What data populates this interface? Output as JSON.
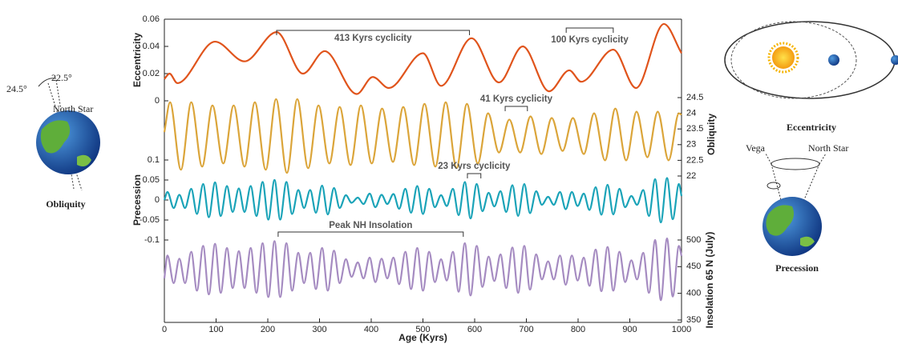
{
  "chart_data": [
    {
      "type": "line",
      "ylabel": "Eccentricity",
      "axis": "left",
      "color": "#e0541c",
      "ylim": [
        0,
        0.06
      ],
      "yticks": [
        0,
        0.02,
        0.04,
        0.06
      ],
      "x": [
        0,
        10,
        25,
        98,
        155,
        217,
        268,
        310,
        372,
        403,
        434,
        500,
        535,
        594,
        647,
        693,
        744,
        783,
        806,
        868,
        912,
        966,
        1000
      ],
      "values": [
        0.016,
        0.02,
        0.013,
        0.0435,
        0.029,
        0.0505,
        0.02,
        0.0365,
        0.005,
        0.0175,
        0.0094,
        0.035,
        0.011,
        0.046,
        0.0135,
        0.04,
        0.007,
        0.0224,
        0.014,
        0.0376,
        0.0094,
        0.0565,
        0.035
      ],
      "annotations": [
        {
          "label": "413 Kyrs cyclicity",
          "x": [
            217,
            590
          ]
        },
        {
          "label": "100 Kyrs cyclicity",
          "x": [
            777,
            868
          ]
        }
      ]
    },
    {
      "type": "line",
      "ylabel": "Obliquity",
      "axis": "y2",
      "color": "#dba53a",
      "ylim": [
        22,
        24.5
      ],
      "yticks": [
        22,
        22.5,
        23,
        23.5,
        24,
        24.5
      ],
      "x": [
        0,
        11,
        32,
        52,
        73,
        93,
        114,
        134,
        155,
        175,
        196,
        216,
        237,
        257,
        278,
        298,
        319,
        339,
        360,
        380,
        401,
        421,
        442,
        462,
        483,
        503,
        524,
        544,
        565,
        585,
        606,
        626,
        647,
        667,
        688,
        708,
        729,
        749,
        770,
        790,
        811,
        831,
        852,
        872,
        893,
        913,
        934,
        954,
        975,
        995,
        1000
      ],
      "values": [
        23.4,
        24.35,
        22.2,
        24.35,
        22.3,
        24.25,
        22.4,
        24.25,
        22.3,
        24.35,
        22.2,
        24.45,
        22.1,
        24.45,
        22.25,
        24.25,
        22.4,
        24.2,
        22.35,
        24.25,
        22.4,
        24.15,
        22.45,
        24.2,
        22.35,
        24.3,
        22.3,
        24.35,
        22.25,
        24.3,
        22.4,
        24.0,
        22.75,
        23.8,
        22.75,
        23.9,
        22.7,
        23.85,
        22.8,
        23.85,
        22.7,
        24.0,
        22.5,
        24.15,
        22.5,
        24.05,
        22.6,
        24.05,
        22.5,
        24.0,
        23.95
      ],
      "annotations": [
        {
          "label": "41 Kyrs cyclicity",
          "x": [
            659,
            702
          ]
        }
      ]
    },
    {
      "type": "line",
      "ylabel": "Precession",
      "axis": "left",
      "color": "#1aa3b8",
      "ylim": [
        -0.1,
        0.1
      ],
      "yticks": [
        -0.1,
        -0.05,
        0,
        0.05,
        0.1
      ],
      "x": [
        0,
        6,
        18,
        29,
        40,
        52,
        63,
        75,
        86,
        98,
        109,
        121,
        132,
        144,
        155,
        167,
        178,
        190,
        201,
        213,
        224,
        236,
        247,
        259,
        270,
        282,
        293,
        305,
        316,
        328,
        339,
        351,
        362,
        374,
        385,
        397,
        408,
        420,
        431,
        443,
        454,
        466,
        477,
        489,
        500,
        512,
        523,
        535,
        546,
        558,
        569,
        581,
        592,
        604,
        615,
        627,
        638,
        650,
        661,
        673,
        684,
        696,
        707,
        719,
        730,
        742,
        753,
        765,
        776,
        788,
        799,
        811,
        822,
        834,
        845,
        857,
        868,
        880,
        891,
        903,
        914,
        926,
        937,
        949,
        960,
        972,
        983,
        995,
        1000
      ],
      "values": [
        0,
        0.02,
        -0.02,
        0.013,
        -0.02,
        0.028,
        -0.035,
        0.04,
        -0.043,
        0.044,
        -0.04,
        0.035,
        -0.03,
        0.029,
        -0.03,
        0.035,
        -0.04,
        0.045,
        -0.049,
        0.05,
        -0.049,
        0.045,
        -0.035,
        0.025,
        -0.02,
        0.025,
        -0.032,
        0.036,
        -0.036,
        0.03,
        -0.02,
        0.012,
        -0.007,
        0.006,
        -0.01,
        0.016,
        -0.018,
        0.013,
        -0.01,
        0.015,
        -0.022,
        0.028,
        -0.032,
        0.035,
        -0.035,
        0.028,
        -0.018,
        0.012,
        -0.015,
        0.028,
        -0.038,
        0.045,
        -0.046,
        0.04,
        -0.028,
        0.018,
        -0.016,
        0.022,
        -0.03,
        0.037,
        -0.04,
        0.04,
        -0.033,
        0.022,
        -0.012,
        0.008,
        -0.012,
        0.02,
        -0.023,
        0.02,
        -0.015,
        0.016,
        -0.025,
        0.032,
        -0.037,
        0.038,
        -0.036,
        0.028,
        -0.018,
        0.01,
        -0.012,
        0.025,
        -0.04,
        0.052,
        -0.056,
        0.055,
        -0.048,
        0.04,
        0.01
      ],
      "annotations": [
        {
          "label": "23 Kyrs cyclicity",
          "x": [
            586,
            612
          ]
        }
      ]
    },
    {
      "type": "line",
      "ylabel": "Insolation 65 N (July)",
      "axis": "y2",
      "color": "#a58bc1",
      "ylim": [
        350,
        500
      ],
      "yticks": [
        350,
        400,
        450,
        500
      ],
      "xlabel": "Age (Kyrs)",
      "xlim": [
        0,
        1000
      ],
      "xticks": [
        0,
        100,
        200,
        300,
        400,
        500,
        600,
        700,
        800,
        900,
        1000
      ],
      "x": [
        0,
        6,
        18,
        29,
        40,
        52,
        63,
        75,
        86,
        98,
        109,
        121,
        132,
        144,
        155,
        167,
        178,
        190,
        201,
        213,
        224,
        236,
        247,
        259,
        270,
        282,
        293,
        305,
        316,
        328,
        339,
        351,
        362,
        374,
        385,
        397,
        408,
        420,
        431,
        443,
        454,
        466,
        477,
        489,
        500,
        512,
        523,
        535,
        546,
        558,
        569,
        581,
        592,
        604,
        615,
        627,
        638,
        650,
        661,
        673,
        684,
        696,
        707,
        719,
        730,
        742,
        753,
        765,
        776,
        788,
        799,
        811,
        822,
        834,
        845,
        857,
        868,
        880,
        891,
        903,
        914,
        926,
        937,
        949,
        960,
        972,
        983,
        995,
        1000
      ],
      "values": [
        428,
        471,
        419,
        465,
        419,
        478,
        405,
        489,
        398,
        493,
        401,
        485,
        410,
        479,
        410,
        485,
        401,
        494,
        393,
        498,
        393,
        494,
        405,
        476,
        419,
        476,
        408,
        485,
        405,
        480,
        419,
        464,
        431,
        458,
        428,
        467,
        421,
        465,
        428,
        467,
        417,
        478,
        408,
        485,
        405,
        478,
        421,
        464,
        424,
        478,
        403,
        494,
        396,
        489,
        412,
        469,
        423,
        473,
        410,
        486,
        401,
        489,
        407,
        473,
        426,
        460,
        426,
        471,
        416,
        471,
        424,
        467,
        414,
        482,
        404,
        487,
        405,
        478,
        421,
        462,
        426,
        476,
        401,
        500,
        387,
        503,
        394,
        489,
        470
      ],
      "annotations": [
        {
          "label": "Peak NH Insolation",
          "x": [
            220,
            578
          ]
        }
      ]
    }
  ],
  "diagrams": {
    "obliquity": {
      "angles": [
        "24.5°",
        "22.5°"
      ],
      "star": "North Star",
      "caption": "Obliquity"
    },
    "eccentricity": {
      "caption": "Eccentricity"
    },
    "precession": {
      "stars": [
        "Vega",
        "North Star"
      ],
      "caption": "Precession"
    }
  }
}
